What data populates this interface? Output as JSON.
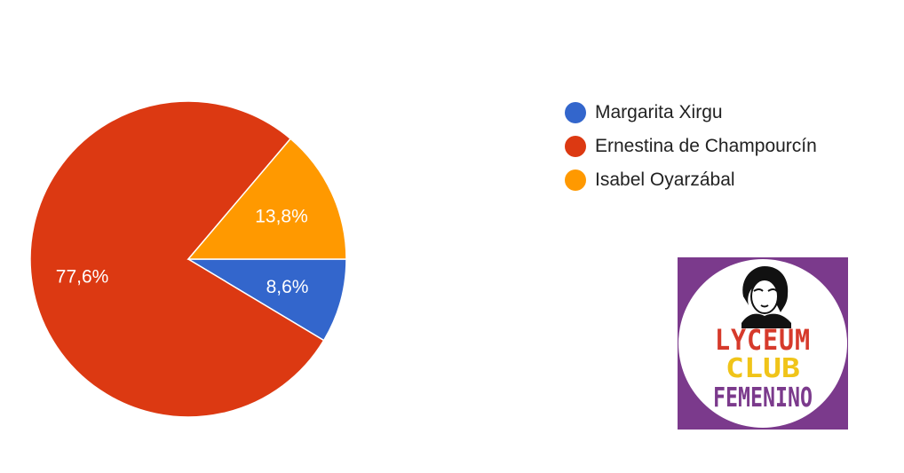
{
  "chart_data": {
    "type": "pie",
    "slices": [
      {
        "name": "Margarita Xirgu",
        "value": 8.6,
        "label": "8,6%",
        "color": "#3366cc"
      },
      {
        "name": "Ernestina de Champourcín",
        "value": 77.6,
        "label": "77,6%",
        "color": "#dc3912"
      },
      {
        "name": "Isabel Oyarzábal",
        "value": 13.8,
        "label": "13,8%",
        "color": "#ff9900"
      }
    ],
    "legend_position": "right"
  },
  "logo": {
    "line1": "LYCEUM",
    "line2": "CLUB",
    "line3": "FEMENINO",
    "background": "#7b3a8c",
    "line1_color": "#d63a2b",
    "line2_color": "#f0c419",
    "line3_color": "#7b3a8c"
  }
}
